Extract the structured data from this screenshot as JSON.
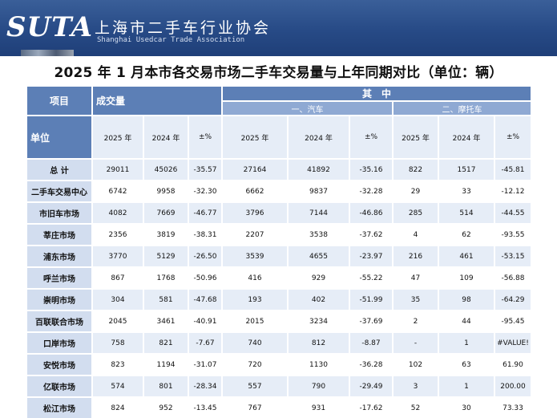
{
  "header": {
    "logo": "SUTA",
    "cn_name": "上海市二手车行业协会",
    "en_name": "Shanghai Usedcar Trade Association"
  },
  "title": "2025 年 1 月本市各交易市场二手车交易量与上年同期对比（单位：辆）",
  "table": {
    "corner_top": "项目",
    "corner_bottom": "单位",
    "group_volume": "成交量",
    "group_of_which": "其　中",
    "sub_cars": "一、汽车",
    "sub_moto": "二、摩托车",
    "year_headers": [
      "2025 年",
      "2024 年",
      "±%",
      "2025 年",
      "2024 年",
      "±%",
      "2025 年",
      "2024 年",
      "±%"
    ],
    "rows": [
      {
        "label": "总 计",
        "values": [
          "29011",
          "45026",
          "-35.57",
          "27164",
          "41892",
          "-35.16",
          "822",
          "1517",
          "-45.81"
        ]
      },
      {
        "label": "二手车交易中心",
        "values": [
          "6742",
          "9958",
          "-32.30",
          "6662",
          "9837",
          "-32.28",
          "29",
          "33",
          "-12.12"
        ]
      },
      {
        "label": "市旧车市场",
        "values": [
          "4082",
          "7669",
          "-46.77",
          "3796",
          "7144",
          "-46.86",
          "285",
          "514",
          "-44.55"
        ]
      },
      {
        "label": "莘庄市场",
        "values": [
          "2356",
          "3819",
          "-38.31",
          "2207",
          "3538",
          "-37.62",
          "4",
          "62",
          "-93.55"
        ]
      },
      {
        "label": "浦东市场",
        "values": [
          "3770",
          "5129",
          "-26.50",
          "3539",
          "4655",
          "-23.97",
          "216",
          "461",
          "-53.15"
        ]
      },
      {
        "label": "呼兰市场",
        "values": [
          "867",
          "1768",
          "-50.96",
          "416",
          "929",
          "-55.22",
          "47",
          "109",
          "-56.88"
        ]
      },
      {
        "label": "崇明市场",
        "values": [
          "304",
          "581",
          "-47.68",
          "193",
          "402",
          "-51.99",
          "35",
          "98",
          "-64.29"
        ]
      },
      {
        "label": "百联联合市场",
        "values": [
          "2045",
          "3461",
          "-40.91",
          "2015",
          "3234",
          "-37.69",
          "2",
          "44",
          "-95.45"
        ]
      },
      {
        "label": "口岸市场",
        "values": [
          "758",
          "821",
          "-7.67",
          "740",
          "812",
          "-8.87",
          "-",
          "1",
          "#VALUE!"
        ]
      },
      {
        "label": "安悦市场",
        "values": [
          "823",
          "1194",
          "-31.07",
          "720",
          "1130",
          "-36.28",
          "102",
          "63",
          "61.90"
        ]
      },
      {
        "label": "亿联市场",
        "values": [
          "574",
          "801",
          "-28.34",
          "557",
          "790",
          "-29.49",
          "3",
          "1",
          "200.00"
        ]
      },
      {
        "label": "松江市场",
        "values": [
          "824",
          "952",
          "-13.45",
          "767",
          "931",
          "-17.62",
          "52",
          "30",
          "73.33"
        ]
      }
    ]
  }
}
